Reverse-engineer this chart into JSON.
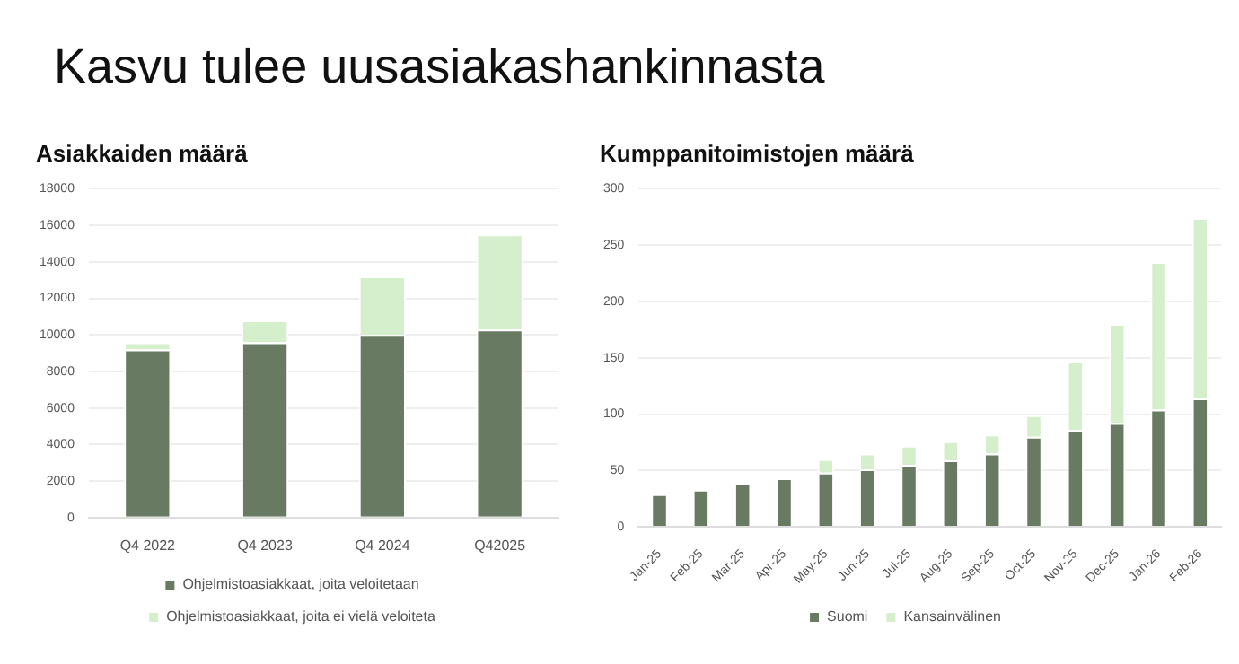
{
  "chart_data": [
    {
      "type": "bar",
      "title": "Asiakkaiden määrä",
      "annotations": [
        "Kasvu tulee uusasiakashankinnasta"
      ],
      "categories": [
        "Q4 2022",
        "Q4 2023",
        "Q4 2024",
        "Q42025"
      ],
      "stacked": true,
      "series": [
        {
          "name": "Ohjelmistoasiakkaat, joita veloitetaan",
          "color": "#687b62",
          "values": [
            9200,
            9600,
            10000,
            10300
          ]
        },
        {
          "name": "Ohjelmistoasiakkaat, joita ei vielä veloiteta",
          "color": "#d5efcc",
          "values": [
            400,
            1200,
            3200,
            5200
          ]
        }
      ],
      "ylim": [
        0,
        18000
      ],
      "yticks": [
        0,
        2000,
        4000,
        6000,
        8000,
        10000,
        12000,
        14000,
        16000,
        18000
      ],
      "grid": "y",
      "legend": "bottom"
    },
    {
      "type": "bar",
      "title": "Kumppanitoimistojen määrä",
      "categories": [
        "Jan-25",
        "Feb-25",
        "Mar-25",
        "Apr-25",
        "May-25",
        "Jun-25",
        "Jul-25",
        "Aug-25",
        "Sep-25",
        "Oct-25",
        "Nov-25",
        "Dec-25",
        "Jan-26",
        "Feb-26"
      ],
      "stacked": true,
      "series": [
        {
          "name": "Suomi",
          "color": "#687b62",
          "values": [
            29,
            33,
            39,
            43,
            48,
            51,
            55,
            59,
            65,
            80,
            86,
            92,
            104,
            114
          ]
        },
        {
          "name": "Kansainvälinen",
          "color": "#d5efcc",
          "values": [
            0,
            0,
            0,
            0,
            12,
            14,
            17,
            17,
            17,
            19,
            61,
            88,
            131,
            160
          ]
        }
      ],
      "ylim": [
        0,
        300
      ],
      "yticks": [
        0,
        50,
        100,
        150,
        200,
        250,
        300
      ],
      "grid": "y",
      "legend": "bottom"
    }
  ]
}
